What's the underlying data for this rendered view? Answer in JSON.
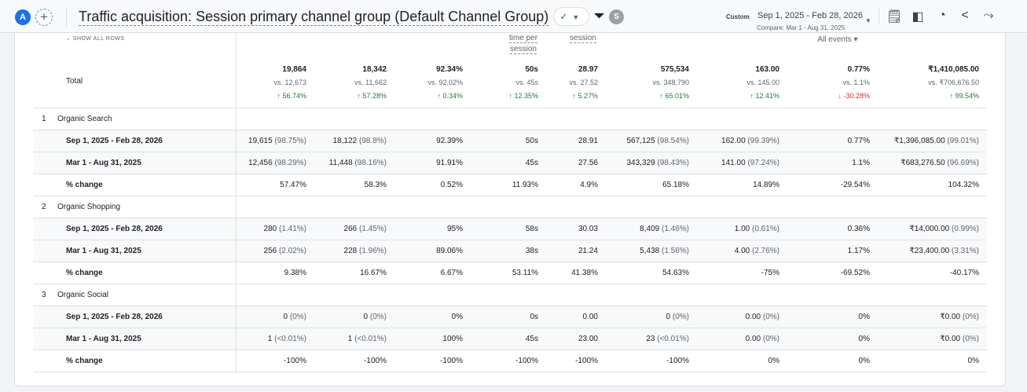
{
  "header": {
    "avatar": "A",
    "add": "+",
    "title": "Traffic acquisition: Session primary channel group (Default Channel Group)",
    "status_icon": "✓",
    "user": "S",
    "custom_label": "Custom",
    "date_range": "Sep 1, 2025 - Feb 28, 2026",
    "compare": "Compare: Mar 1 - Aug 31, 2025",
    "icons": [
      "customize-report-icon",
      "compare-icon",
      "insights-icon",
      "share-icon",
      "spark-icon"
    ]
  },
  "table": {
    "show_all_rows": "SHOW ALL ROWS",
    "col_headers": {
      "c4a": "time per",
      "c4b": "session",
      "c5": "session",
      "c8": "All events"
    },
    "total": {
      "label": "Total",
      "values": [
        "19,864",
        "18,342",
        "92.34%",
        "50s",
        "28.97",
        "575,534",
        "163.00",
        "0.77%",
        "₹1,410,085.00"
      ],
      "vs": [
        "vs. 12,673",
        "vs. 11,662",
        "vs. 92.02%",
        "vs. 45s",
        "vs. 27.52",
        "vs. 348,790",
        "vs. 145.00",
        "vs. 1.1%",
        "vs. ₹706,676.50"
      ],
      "change": [
        "↑ 56.74%",
        "↑ 57.28%",
        "↑ 0.34%",
        "↑ 12.35%",
        "↑ 5.27%",
        "↑ 65.01%",
        "↑ 12.41%",
        "↓ -30.28%",
        "↑ 99.54%"
      ],
      "direction": [
        "up",
        "up",
        "up",
        "up",
        "up",
        "up",
        "up",
        "down",
        "up"
      ]
    },
    "groups": [
      {
        "num": "1",
        "name": "Organic Search",
        "rows": [
          {
            "label": "Sep 1, 2025 - Feb 28, 2026",
            "cells": [
              [
                "19,615",
                "(98.75%)"
              ],
              [
                "18,122",
                "(98.8%)"
              ],
              [
                "92.39%",
                ""
              ],
              [
                "50s",
                ""
              ],
              [
                "28.91",
                ""
              ],
              [
                "567,125",
                "(98.54%)"
              ],
              [
                "162.00",
                "(99.39%)"
              ],
              [
                "0.77%",
                ""
              ],
              [
                "₹1,396,085.00",
                "(99.01%)"
              ]
            ]
          },
          {
            "label": "Mar 1 - Aug 31, 2025",
            "cells": [
              [
                "12,456",
                "(98.29%)"
              ],
              [
                "11,448",
                "(98.16%)"
              ],
              [
                "91.91%",
                ""
              ],
              [
                "45s",
                ""
              ],
              [
                "27.56",
                ""
              ],
              [
                "343,329",
                "(98.43%)"
              ],
              [
                "141.00",
                "(97.24%)"
              ],
              [
                "1.1%",
                ""
              ],
              [
                "₹683,276.50",
                "(96.69%)"
              ]
            ]
          },
          {
            "label": "% change",
            "cells": [
              [
                "57.47%",
                ""
              ],
              [
                "58.3%",
                ""
              ],
              [
                "0.52%",
                ""
              ],
              [
                "11.93%",
                ""
              ],
              [
                "4.9%",
                ""
              ],
              [
                "65.18%",
                ""
              ],
              [
                "14.89%",
                ""
              ],
              [
                "-29.54%",
                ""
              ],
              [
                "104.32%",
                ""
              ]
            ]
          }
        ]
      },
      {
        "num": "2",
        "name": "Organic Shopping",
        "rows": [
          {
            "label": "Sep 1, 2025 - Feb 28, 2026",
            "cells": [
              [
                "280",
                "(1.41%)"
              ],
              [
                "266",
                "(1.45%)"
              ],
              [
                "95%",
                ""
              ],
              [
                "58s",
                ""
              ],
              [
                "30.03",
                ""
              ],
              [
                "8,409",
                "(1.46%)"
              ],
              [
                "1.00",
                "(0.61%)"
              ],
              [
                "0.36%",
                ""
              ],
              [
                "₹14,000.00",
                "(0.99%)"
              ]
            ]
          },
          {
            "label": "Mar 1 - Aug 31, 2025",
            "cells": [
              [
                "256",
                "(2.02%)"
              ],
              [
                "228",
                "(1.96%)"
              ],
              [
                "89.06%",
                ""
              ],
              [
                "38s",
                ""
              ],
              [
                "21.24",
                ""
              ],
              [
                "5,438",
                "(1.56%)"
              ],
              [
                "4.00",
                "(2.76%)"
              ],
              [
                "1.17%",
                ""
              ],
              [
                "₹23,400.00",
                "(3.31%)"
              ]
            ]
          },
          {
            "label": "% change",
            "cells": [
              [
                "9.38%",
                ""
              ],
              [
                "16.67%",
                ""
              ],
              [
                "6.67%",
                ""
              ],
              [
                "53.11%",
                ""
              ],
              [
                "41.38%",
                ""
              ],
              [
                "54.63%",
                ""
              ],
              [
                "-75%",
                ""
              ],
              [
                "-69.52%",
                ""
              ],
              [
                "-40.17%",
                ""
              ]
            ]
          }
        ]
      },
      {
        "num": "3",
        "name": "Organic Social",
        "rows": [
          {
            "label": "Sep 1, 2025 - Feb 28, 2026",
            "cells": [
              [
                "0",
                "(0%)"
              ],
              [
                "0",
                "(0%)"
              ],
              [
                "0%",
                ""
              ],
              [
                "0s",
                ""
              ],
              [
                "0.00",
                ""
              ],
              [
                "0",
                "(0%)"
              ],
              [
                "0.00",
                "(0%)"
              ],
              [
                "0%",
                ""
              ],
              [
                "₹0.00",
                "(0%)"
              ]
            ]
          },
          {
            "label": "Mar 1 - Aug 31, 2025",
            "cells": [
              [
                "1",
                "(<0.01%)"
              ],
              [
                "1",
                "(<0.01%)"
              ],
              [
                "100%",
                ""
              ],
              [
                "45s",
                ""
              ],
              [
                "23.00",
                ""
              ],
              [
                "23",
                "(<0.01%)"
              ],
              [
                "0.00",
                "(0%)"
              ],
              [
                "0%",
                ""
              ],
              [
                "₹0.00",
                "(0%)"
              ]
            ]
          },
          {
            "label": "% change",
            "cells": [
              [
                "-100%",
                ""
              ],
              [
                "-100%",
                ""
              ],
              [
                "-100%",
                ""
              ],
              [
                "-100%",
                ""
              ],
              [
                "-100%",
                ""
              ],
              [
                "-100%",
                ""
              ],
              [
                "0%",
                ""
              ],
              [
                "0%",
                ""
              ],
              [
                "0%",
                ""
              ]
            ]
          }
        ]
      }
    ]
  }
}
